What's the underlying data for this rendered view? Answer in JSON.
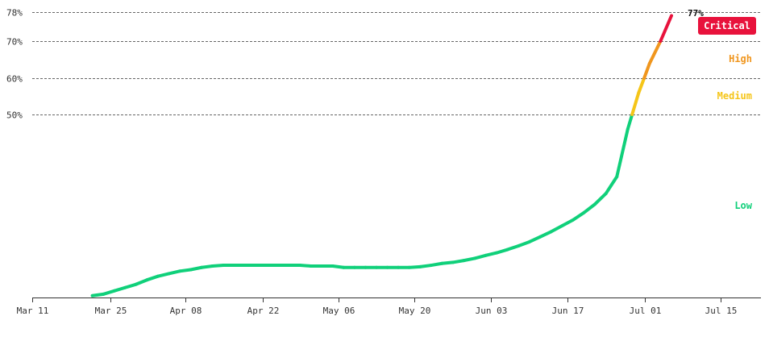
{
  "chart_data": {
    "type": "line",
    "title": "",
    "xlabel": "",
    "ylabel": "",
    "x_tick_labels": [
      "Mar 11",
      "Mar 25",
      "Apr 08",
      "Apr 22",
      "May 06",
      "May 20",
      "Jun 03",
      "Jun 17",
      "Jul 01",
      "Jul 15"
    ],
    "y_tick_labels": [
      "50%",
      "60%",
      "70%",
      "78%"
    ],
    "y_ticks": [
      50,
      60,
      70,
      78
    ],
    "grid": "dashed horizontal lines at y ticks",
    "bands": [
      {
        "name": "Low",
        "color": "#10d07a"
      },
      {
        "name": "Medium",
        "color": "#f5c518"
      },
      {
        "name": "High",
        "color": "#f0961e"
      },
      {
        "name": "Critical",
        "color": "#e8123c"
      }
    ],
    "current_value_label": "77%",
    "series": [
      {
        "x": [
          "Mar 22",
          "Mar 24",
          "Mar 26",
          "Mar 28",
          "Mar 30",
          "Apr 01",
          "Apr 03",
          "Apr 05",
          "Apr 07",
          "Apr 09",
          "Apr 11",
          "Apr 13",
          "Apr 15",
          "Apr 17",
          "Apr 19",
          "Apr 21",
          "Apr 23",
          "Apr 25",
          "Apr 27",
          "Apr 29",
          "May 01",
          "May 03",
          "May 05",
          "May 07",
          "May 09",
          "May 11",
          "May 13",
          "May 15",
          "May 17",
          "May 19",
          "May 21",
          "May 23",
          "May 25",
          "May 27",
          "May 29",
          "May 31",
          "Jun 02",
          "Jun 04",
          "Jun 06",
          "Jun 08",
          "Jun 10",
          "Jun 12",
          "Jun 14",
          "Jun 16",
          "Jun 18",
          "Jun 20",
          "Jun 22",
          "Jun 24",
          "Jun 26",
          "Jun 28",
          "Jun 30",
          "Jul 02",
          "Jul 04",
          "Jul 06"
        ],
        "values": [
          0.5,
          0.9,
          1.8,
          2.7,
          3.6,
          4.8,
          5.8,
          6.5,
          7.2,
          7.6,
          8.2,
          8.6,
          8.8,
          8.8,
          8.8,
          8.8,
          8.8,
          8.8,
          8.8,
          8.8,
          8.6,
          8.6,
          8.6,
          8.2,
          8.2,
          8.2,
          8.2,
          8.2,
          8.2,
          8.2,
          8.4,
          8.8,
          9.3,
          9.6,
          10.1,
          10.7,
          11.5,
          12.2,
          13.1,
          14.1,
          15.2,
          16.6,
          18.0,
          19.6,
          21.2,
          23.2,
          25.5,
          28.4,
          33.0,
          46.0,
          56.0,
          64.0,
          70.0,
          77.0
        ]
      }
    ]
  }
}
